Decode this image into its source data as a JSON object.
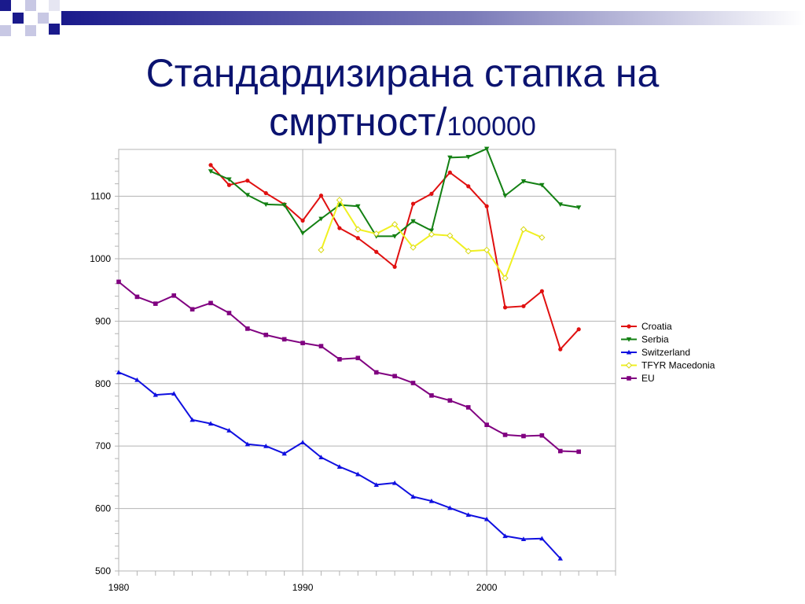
{
  "slide": {
    "title_line1": "Стандардизирана стапка на",
    "title_line2": "смртност/",
    "title_suffix": "100000"
  },
  "colors": {
    "title": "#0b1370",
    "accent": "#1a1a8c"
  },
  "chart_data": {
    "type": "line",
    "title": "",
    "xlabel": "",
    "ylabel": "",
    "xlim": [
      1980,
      2007
    ],
    "ylim": [
      500,
      1175
    ],
    "x_ticks": [
      1980,
      1990,
      2000
    ],
    "y_ticks": [
      500,
      600,
      700,
      800,
      900,
      1000,
      1100
    ],
    "grid": "vertical lines at 1990 and 2000, horizontal lines at y ticks",
    "legend_position": "right",
    "series": [
      {
        "name": "Croatia",
        "color": "#e01010",
        "marker": "circle",
        "x": [
          1985,
          1986,
          1987,
          1988,
          1989,
          1990,
          1991,
          1992,
          1993,
          1994,
          1995,
          1996,
          1997,
          1998,
          1999,
          2000,
          2001,
          2002,
          2003,
          2004,
          2005
        ],
        "y": [
          1150,
          1118,
          1125,
          1105,
          1087,
          1061,
          1101,
          1049,
          1033,
          1011,
          987,
          1088,
          1104,
          1138,
          1116,
          1084,
          922,
          924,
          948,
          855,
          887
        ]
      },
      {
        "name": "Serbia",
        "color": "#138013",
        "marker": "triangle-down",
        "x": [
          1985,
          1986,
          1987,
          1988,
          1989,
          1990,
          1991,
          1992,
          1993,
          1994,
          1995,
          1996,
          1997,
          1998,
          1999,
          2000,
          2001,
          2002,
          2003,
          2004,
          2005
        ],
        "y": [
          1140,
          1127,
          1102,
          1087,
          1086,
          1041,
          1064,
          1086,
          1084,
          1036,
          1036,
          1060,
          1045,
          1162,
          1163,
          1176,
          1101,
          1124,
          1118,
          1087,
          1082
        ]
      },
      {
        "name": "Switzerland",
        "color": "#1010e0",
        "marker": "triangle-up",
        "x": [
          1980,
          1981,
          1982,
          1983,
          1984,
          1985,
          1986,
          1987,
          1988,
          1989,
          1990,
          1991,
          1992,
          1993,
          1994,
          1995,
          1996,
          1997,
          1998,
          1999,
          2000,
          2001,
          2002,
          2003,
          2004
        ],
        "y": [
          818,
          806,
          782,
          784,
          742,
          736,
          725,
          703,
          700,
          688,
          706,
          682,
          667,
          655,
          638,
          641,
          619,
          612,
          601,
          590,
          583,
          556,
          551,
          552,
          520
        ]
      },
      {
        "name": "TFYR Macedonia",
        "color": "#f0f020",
        "marker": "diamond",
        "x": [
          1991,
          1992,
          1993,
          1994,
          1995,
          1996,
          1997,
          1998,
          1999,
          2000,
          2001,
          2002,
          2003
        ],
        "y": [
          1014,
          1094,
          1047,
          1040,
          1055,
          1018,
          1039,
          1037,
          1012,
          1014,
          969,
          1047,
          1034
        ]
      },
      {
        "name": "EU",
        "color": "#800080",
        "marker": "square",
        "x": [
          1980,
          1981,
          1982,
          1983,
          1984,
          1985,
          1986,
          1987,
          1988,
          1989,
          1990,
          1991,
          1992,
          1993,
          1994,
          1995,
          1996,
          1997,
          1998,
          1999,
          2000,
          2001,
          2002,
          2003,
          2004,
          2005
        ],
        "y": [
          963,
          939,
          928,
          941,
          919,
          929,
          913,
          888,
          878,
          871,
          865,
          860,
          839,
          841,
          818,
          812,
          801,
          781,
          773,
          762,
          734,
          718,
          716,
          717,
          692,
          691
        ]
      }
    ]
  }
}
